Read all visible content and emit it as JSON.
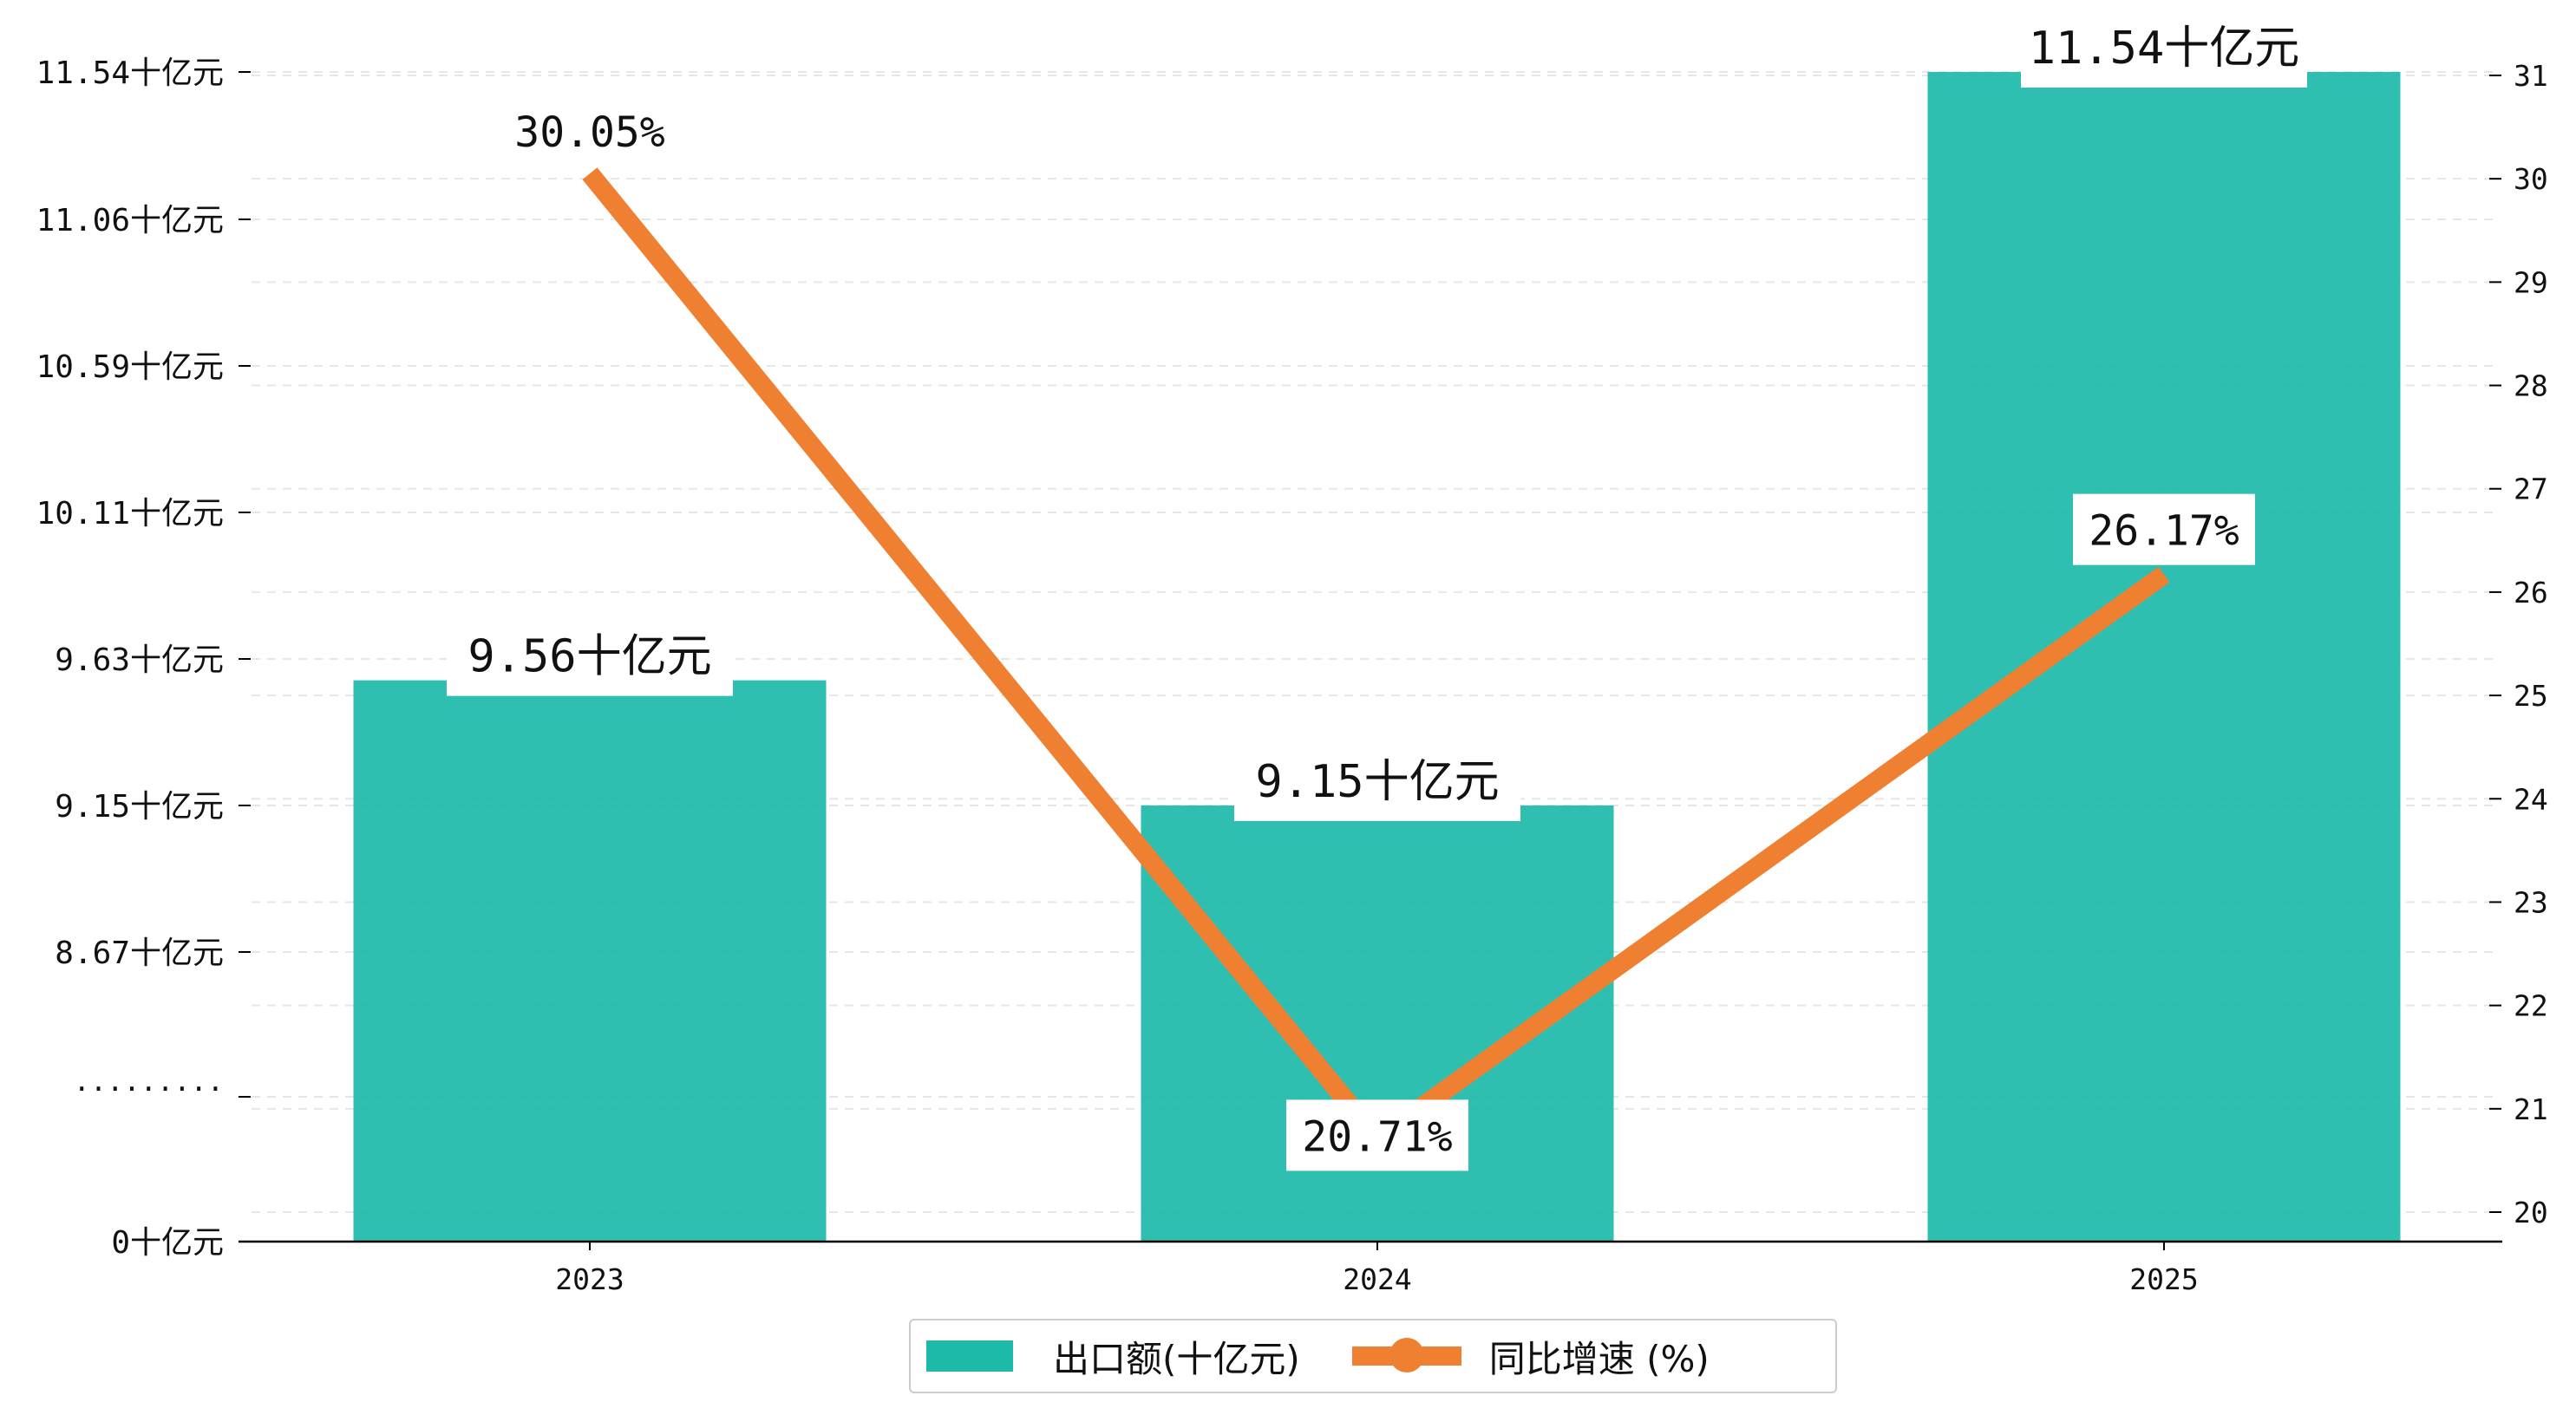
{
  "chart_data": {
    "type": "bar",
    "categories": [
      "2023",
      "2024",
      "2025"
    ],
    "series": [
      {
        "name": "出口额(十亿元)",
        "kind": "bar",
        "axis": "left",
        "values": [
          9.56,
          9.15,
          11.54
        ],
        "labels": [
          "9.56十亿元",
          "9.15十亿元",
          "11.54十亿元"
        ]
      },
      {
        "name": "同比增速 (%)",
        "kind": "line",
        "axis": "right",
        "values": [
          30.05,
          20.71,
          26.17
        ],
        "labels": [
          "30.05%",
          "20.71%",
          "26.17%"
        ]
      }
    ],
    "left_axis": {
      "broken": true,
      "break_label": "·········",
      "ticks": [
        {
          "value": 0,
          "label": "0十亿元"
        },
        {
          "value": 8.67,
          "label": "8.67十亿元"
        },
        {
          "value": 9.15,
          "label": "9.15十亿元"
        },
        {
          "value": 9.63,
          "label": "9.63十亿元"
        },
        {
          "value": 10.11,
          "label": "10.11十亿元"
        },
        {
          "value": 10.59,
          "label": "10.59十亿元"
        },
        {
          "value": 11.06,
          "label": "11.06十亿元"
        },
        {
          "value": 11.54,
          "label": "11.54十亿元"
        }
      ]
    },
    "right_axis": {
      "ylim": [
        20,
        31
      ],
      "ticks": [
        "20",
        "21",
        "22",
        "23",
        "24",
        "25",
        "26",
        "27",
        "28",
        "29",
        "30",
        "31"
      ]
    },
    "grid": true,
    "legend_position": "bottom-center",
    "colors": {
      "bar": "#1dbaa9",
      "line": "#ef8031"
    }
  }
}
